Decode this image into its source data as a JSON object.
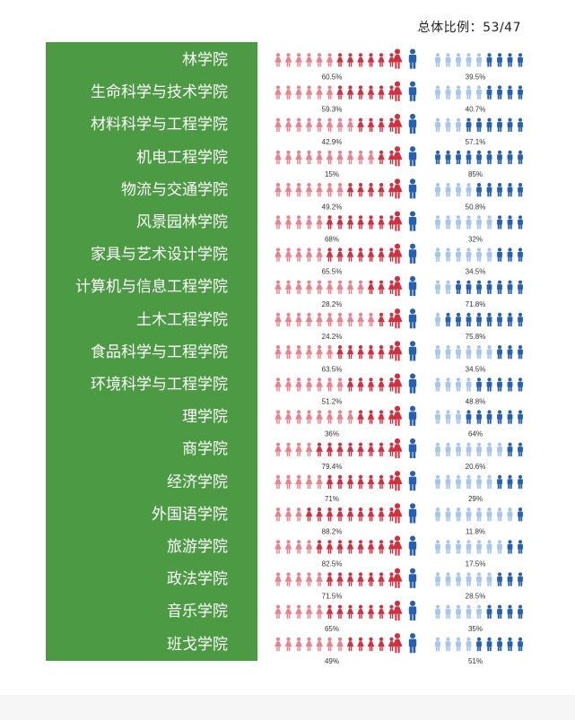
{
  "overall": {
    "label": "总体比例：",
    "value": "53/47"
  },
  "colors": {
    "female_dark": "#d0303f",
    "female_light": "#e8838d",
    "male_dark": "#2660b3",
    "male_light": "#a8c6ea",
    "panel": "#4c9a43"
  },
  "icons": {
    "female": "female-person-icon",
    "male": "male-person-icon"
  },
  "chart_data": {
    "type": "pictogram",
    "series": [
      {
        "name": "女",
        "values": [
          60.5,
          59.3,
          42.9,
          15,
          49.2,
          68,
          65.5,
          28.2,
          24.2,
          63.5,
          51.2,
          36,
          79.4,
          71,
          88.2,
          82.5,
          71.5,
          65,
          49
        ]
      },
      {
        "name": "男",
        "values": [
          39.5,
          40.7,
          57.1,
          85,
          50.8,
          32,
          34.5,
          71.8,
          75.8,
          34.5,
          48.8,
          64,
          20.6,
          29,
          11.8,
          17.5,
          28.5,
          35,
          51
        ]
      }
    ],
    "categories": [
      "林学院",
      "生命科学与技术学院",
      "材料科学与工程学院",
      "机电工程学院",
      "物流与交通学院",
      "风景园林学院",
      "家具与艺术设计学院",
      "计算机与信息工程学院",
      "土木工程学院",
      "食品科学与工程学院",
      "环境科学与工程学院",
      "理学院",
      "商学院",
      "经济学院",
      "外国语学院",
      "旅游学院",
      "政法学院",
      "音乐学院",
      "班戈学院"
    ],
    "female_labels": [
      "60.5%",
      "59.3%",
      "42.9%",
      "15%",
      "49.2%",
      "68%",
      "65.5%",
      "28.2%",
      "24.2%",
      "63.5%",
      "51.2%",
      "36%",
      "79.4%",
      "71%",
      "88.2%",
      "82.5%",
      "71.5%",
      "65%",
      "49%"
    ],
    "male_labels": [
      "39.5%",
      "40.7%",
      "57.1%",
      "85%",
      "50.8%",
      "32%",
      "34.5%",
      "71.8%",
      "75.8%",
      "34.5%",
      "48.8%",
      "64%",
      "20.6%",
      "29%",
      "11.8%",
      "17.5%",
      "28.5%",
      "35%",
      "51%"
    ]
  }
}
